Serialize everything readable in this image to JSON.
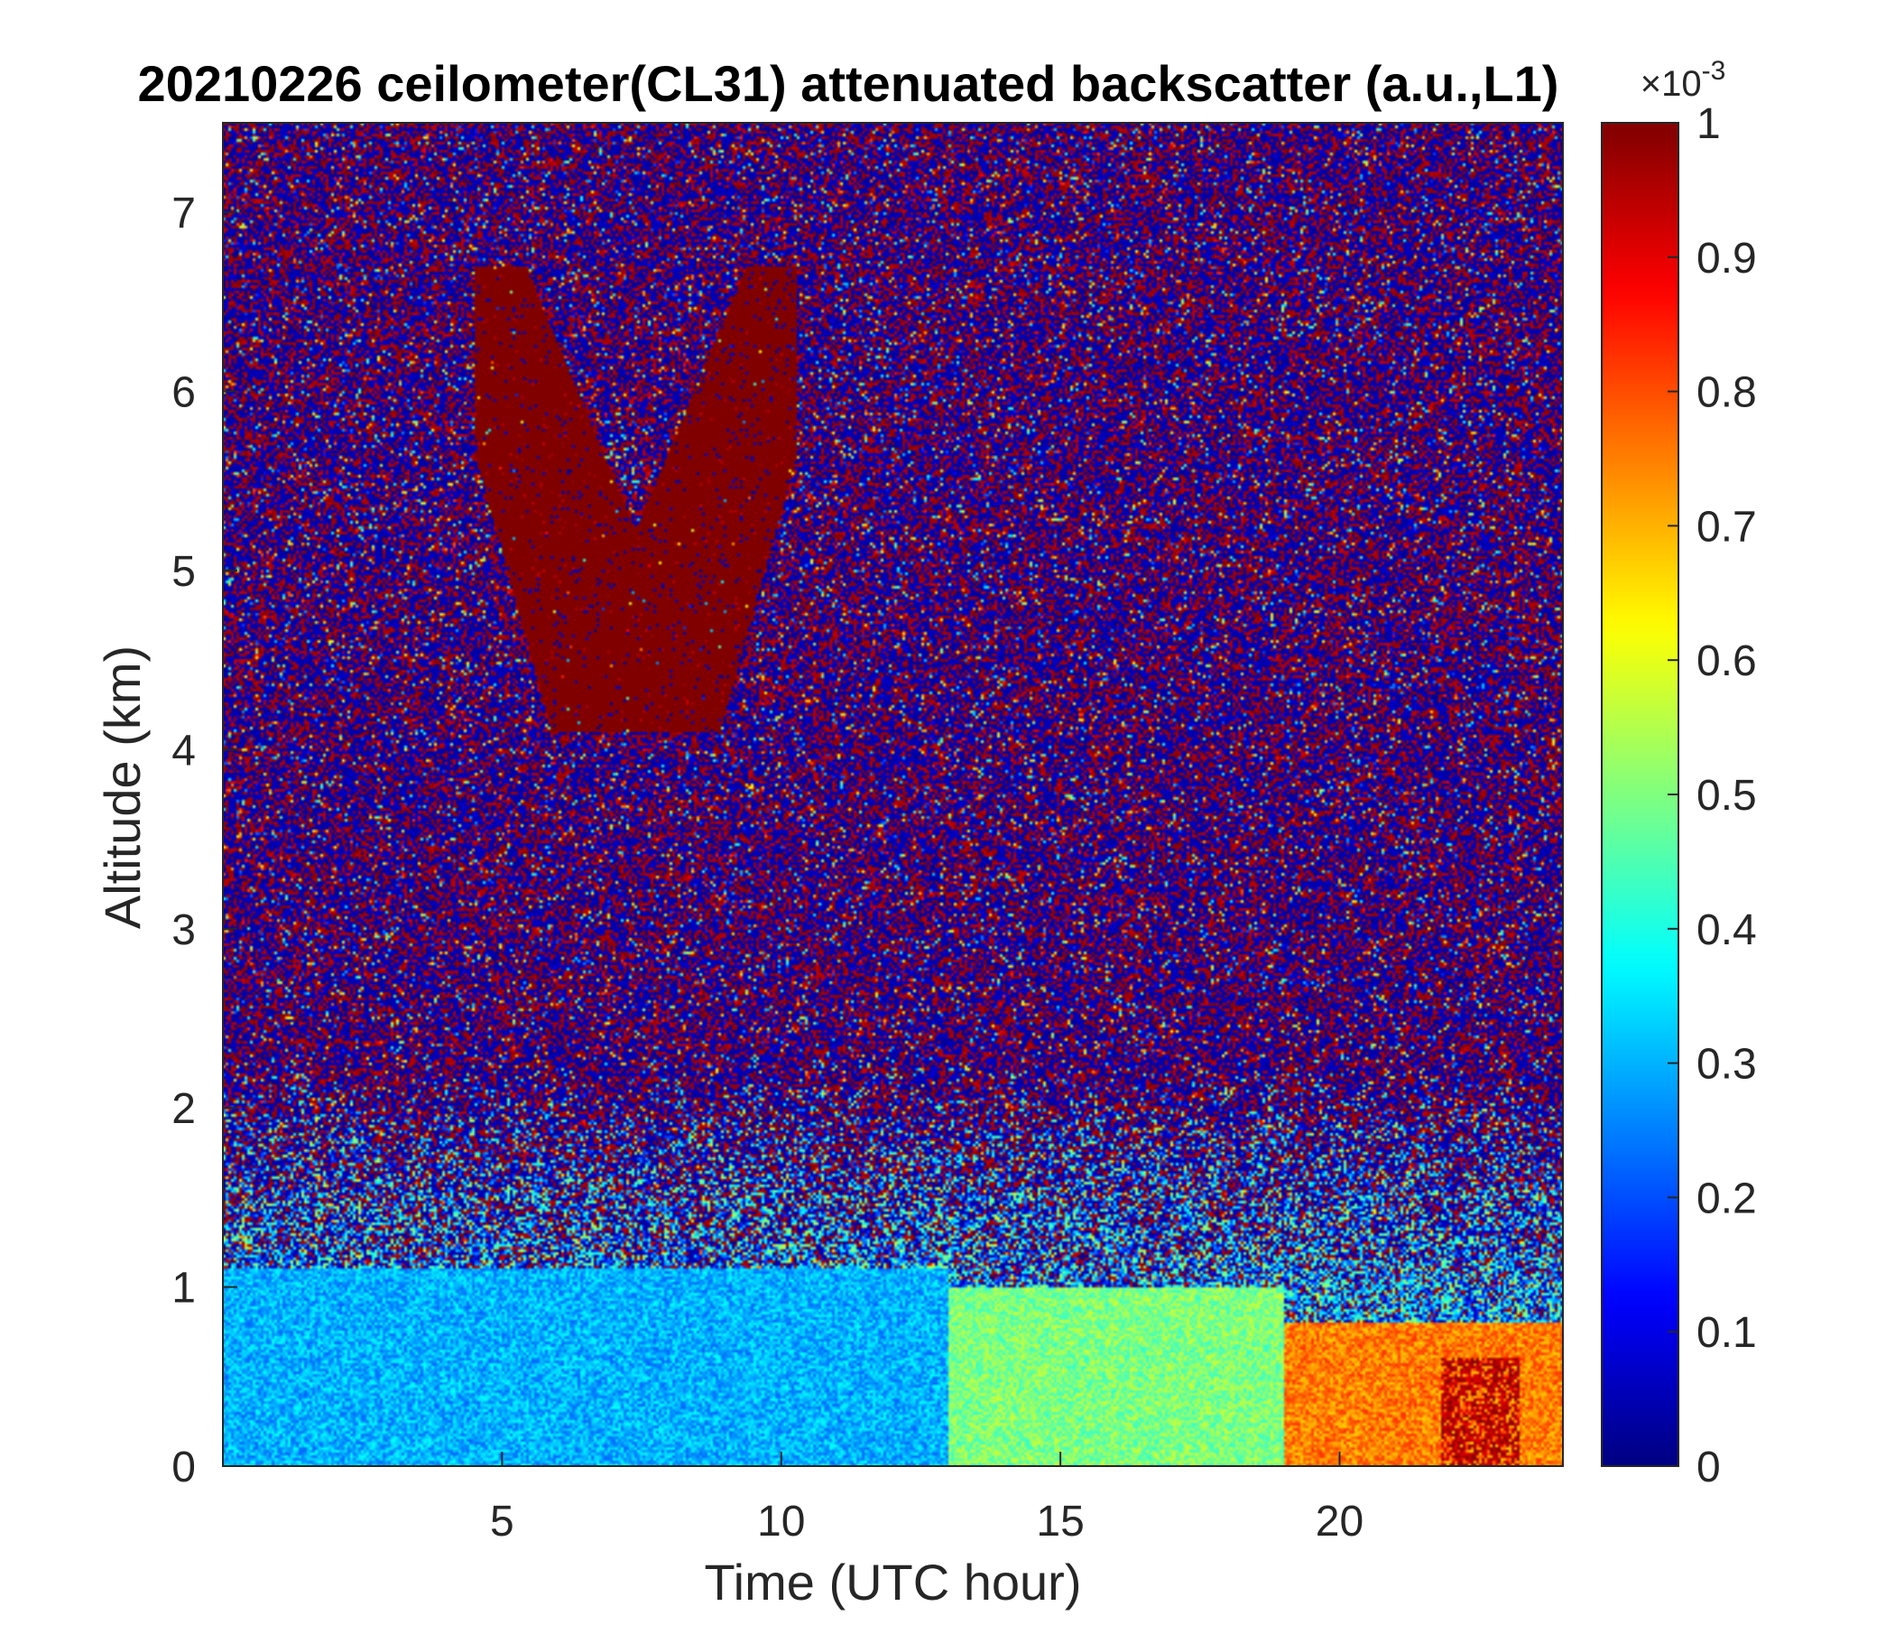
{
  "chart_data": {
    "type": "heatmap",
    "title": "20210226 ceilometer(CL31) attenuated backscatter (a.u.,L1)",
    "xlabel": "Time (UTC hour)",
    "ylabel": "Altitude (km)",
    "xlim": [
      0,
      24
    ],
    "ylim": [
      0,
      7.5
    ],
    "x_ticks": [
      5,
      10,
      15,
      20
    ],
    "y_ticks": [
      0,
      1,
      2,
      3,
      4,
      5,
      6,
      7
    ],
    "colorbar": {
      "colormap": "jet",
      "range": [
        0,
        1
      ],
      "scale_factor": "×10",
      "scale_exponent": "-3",
      "ticks": [
        0,
        0.1,
        0.2,
        0.3,
        0.4,
        0.5,
        0.6,
        0.7,
        0.8,
        0.9,
        1
      ],
      "tick_labels": [
        "0",
        "0.1",
        "0.2",
        "0.3",
        "0.4",
        "0.5",
        "0.6",
        "0.7",
        "0.8",
        "0.9",
        "1"
      ]
    },
    "features": [
      {
        "kind": "cloud",
        "x_range": [
          4.5,
          10.3
        ],
        "altitude_km": [
          4.1,
          6.7
        ],
        "value": 1.0
      },
      {
        "kind": "boundary_layer",
        "x_range": [
          0,
          13
        ],
        "altitude_km": [
          0,
          1.1
        ],
        "value": 0.3
      },
      {
        "kind": "boundary_layer",
        "x_range": [
          13,
          19
        ],
        "altitude_km": [
          0,
          1.0
        ],
        "value": 0.5
      },
      {
        "kind": "boundary_layer",
        "x_range": [
          19,
          24
        ],
        "altitude_km": [
          0,
          0.8
        ],
        "value": 0.75
      },
      {
        "kind": "aerosol_peak",
        "x_range": [
          21.8,
          23.2
        ],
        "altitude_km": [
          0,
          0.6
        ],
        "value": 0.95
      }
    ]
  }
}
